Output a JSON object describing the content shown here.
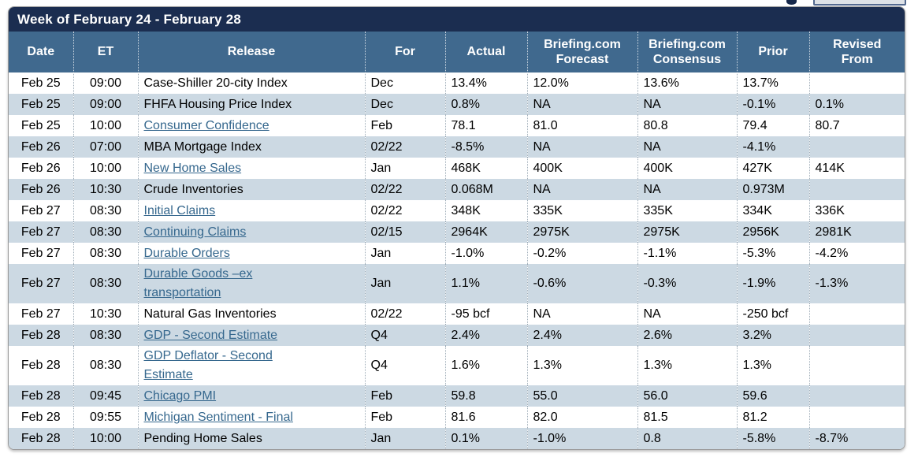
{
  "header": {
    "title": "Week of February 24 - February 28"
  },
  "colors": {
    "title_bar": "#1B2D50",
    "header_bg": "#40698E",
    "alt_row": "#CCD9E3",
    "link": "#36688E"
  },
  "table": {
    "columns": [
      {
        "id": "date",
        "label_lines": [
          "Date"
        ]
      },
      {
        "id": "et",
        "label_lines": [
          "ET"
        ]
      },
      {
        "id": "release",
        "label_lines": [
          "Release"
        ]
      },
      {
        "id": "for",
        "label_lines": [
          "For"
        ]
      },
      {
        "id": "actual",
        "label_lines": [
          "Actual"
        ]
      },
      {
        "id": "forecast",
        "label_lines": [
          "Briefing.com",
          "Forecast"
        ]
      },
      {
        "id": "consensus",
        "label_lines": [
          "Briefing.com",
          "Consensus"
        ]
      },
      {
        "id": "prior",
        "label_lines": [
          "Prior"
        ]
      },
      {
        "id": "revised",
        "label_lines": [
          "Revised",
          "From"
        ]
      }
    ],
    "rows": [
      {
        "date": "Feb 25",
        "et": "09:00",
        "release": "Case-Shiller 20-city Index",
        "is_link": false,
        "for": "Dec",
        "actual": "13.4%",
        "forecast": "12.0%",
        "consensus": "13.6%",
        "prior": "13.7%",
        "revised": ""
      },
      {
        "date": "Feb 25",
        "et": "09:00",
        "release": "FHFA Housing Price Index",
        "is_link": false,
        "for": "Dec",
        "actual": "0.8%",
        "forecast": "NA",
        "consensus": "NA",
        "prior": "-0.1%",
        "revised": "0.1%"
      },
      {
        "date": "Feb 25",
        "et": "10:00",
        "release": "Consumer Confidence",
        "is_link": true,
        "for": "Feb",
        "actual": "78.1",
        "forecast": "81.0",
        "consensus": "80.8",
        "prior": "79.4",
        "revised": "80.7"
      },
      {
        "date": "Feb 26",
        "et": "07:00",
        "release": "MBA Mortgage Index",
        "is_link": false,
        "for": "02/22",
        "actual": "-8.5%",
        "forecast": "NA",
        "consensus": "NA",
        "prior": "-4.1%",
        "revised": ""
      },
      {
        "date": "Feb 26",
        "et": "10:00",
        "release": "New Home Sales",
        "is_link": true,
        "for": "Jan",
        "actual": "468K",
        "forecast": "400K",
        "consensus": "400K",
        "prior": "427K",
        "revised": "414K"
      },
      {
        "date": "Feb 26",
        "et": "10:30",
        "release": "Crude Inventories",
        "is_link": false,
        "for": "02/22",
        "actual": "0.068M",
        "forecast": "NA",
        "consensus": "NA",
        "prior": "0.973M",
        "revised": ""
      },
      {
        "date": "Feb 27",
        "et": "08:30",
        "release": "Initial Claims",
        "is_link": true,
        "for": "02/22",
        "actual": "348K",
        "forecast": "335K",
        "consensus": "335K",
        "prior": "334K",
        "revised": "336K"
      },
      {
        "date": "Feb 27",
        "et": "08:30",
        "release": "Continuing Claims",
        "is_link": true,
        "for": "02/15",
        "actual": "2964K",
        "forecast": "2975K",
        "consensus": "2975K",
        "prior": "2956K",
        "revised": "2981K"
      },
      {
        "date": "Feb 27",
        "et": "08:30",
        "release": "Durable Orders",
        "is_link": true,
        "for": "Jan",
        "actual": "-1.0%",
        "forecast": "-0.2%",
        "consensus": "-1.1%",
        "prior": "-5.3%",
        "revised": "-4.2%"
      },
      {
        "date": "Feb 27",
        "et": "08:30",
        "release": "Durable Goods –ex transportation",
        "is_link": true,
        "for": "Jan",
        "actual": "1.1%",
        "forecast": "-0.6%",
        "consensus": "-0.3%",
        "prior": "-1.9%",
        "revised": "-1.3%"
      },
      {
        "date": "Feb 27",
        "et": "10:30",
        "release": "Natural Gas Inventories",
        "is_link": false,
        "for": "02/22",
        "actual": "-95 bcf",
        "forecast": "NA",
        "consensus": "NA",
        "prior": "-250 bcf",
        "revised": ""
      },
      {
        "date": "Feb 28",
        "et": "08:30",
        "release": "GDP - Second Estimate",
        "is_link": true,
        "for": "Q4",
        "actual": "2.4%",
        "forecast": "2.4%",
        "consensus": "2.6%",
        "prior": "3.2%",
        "revised": ""
      },
      {
        "date": "Feb 28",
        "et": "08:30",
        "release": "GDP Deflator - Second Estimate",
        "is_link": true,
        "for": "Q4",
        "actual": "1.6%",
        "forecast": "1.3%",
        "consensus": "1.3%",
        "prior": "1.3%",
        "revised": ""
      },
      {
        "date": "Feb 28",
        "et": "09:45",
        "release": "Chicago PMI",
        "is_link": true,
        "for": "Feb",
        "actual": "59.8",
        "forecast": "55.0",
        "consensus": "56.0",
        "prior": "59.6",
        "revised": ""
      },
      {
        "date": "Feb 28",
        "et": "09:55",
        "release": "Michigan Sentiment - Final",
        "is_link": true,
        "for": "Feb",
        "actual": "81.6",
        "forecast": "82.0",
        "consensus": "81.5",
        "prior": "81.2",
        "revised": ""
      },
      {
        "date": "Feb 28",
        "et": "10:00",
        "release": "Pending Home Sales",
        "is_link": false,
        "for": "Jan",
        "actual": "0.1%",
        "forecast": "-1.0%",
        "consensus": "0.8",
        "prior": "-5.8%",
        "revised": "-8.7%"
      }
    ]
  }
}
